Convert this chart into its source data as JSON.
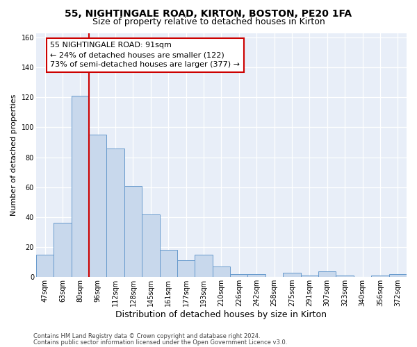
{
  "title1": "55, NIGHTINGALE ROAD, KIRTON, BOSTON, PE20 1FA",
  "title2": "Size of property relative to detached houses in Kirton",
  "xlabel": "Distribution of detached houses by size in Kirton",
  "ylabel": "Number of detached properties",
  "footer1": "Contains HM Land Registry data © Crown copyright and database right 2024.",
  "footer2": "Contains public sector information licensed under the Open Government Licence v3.0.",
  "categories": [
    "47sqm",
    "63sqm",
    "80sqm",
    "96sqm",
    "112sqm",
    "128sqm",
    "145sqm",
    "161sqm",
    "177sqm",
    "193sqm",
    "210sqm",
    "226sqm",
    "242sqm",
    "258sqm",
    "275sqm",
    "291sqm",
    "307sqm",
    "323sqm",
    "340sqm",
    "356sqm",
    "372sqm"
  ],
  "values": [
    15,
    36,
    121,
    95,
    86,
    61,
    42,
    18,
    11,
    15,
    7,
    2,
    2,
    0,
    3,
    1,
    4,
    1,
    0,
    1,
    2
  ],
  "bar_color": "#c8d8ec",
  "bar_edgecolor": "#6699cc",
  "vline_color": "#cc0000",
  "annotation_line1": "55 NIGHTINGALE ROAD: 91sqm",
  "annotation_line2": "← 24% of detached houses are smaller (122)",
  "annotation_line3": "73% of semi-detached houses are larger (377) →",
  "annotation_box_facecolor": "#ffffff",
  "annotation_box_edgecolor": "#cc0000",
  "ylim": [
    0,
    163
  ],
  "yticks": [
    0,
    20,
    40,
    60,
    80,
    100,
    120,
    140,
    160
  ],
  "fig_facecolor": "#ffffff",
  "ax_facecolor": "#e8eef8",
  "grid_color": "#ffffff",
  "title1_fontsize": 10,
  "title2_fontsize": 9,
  "xlabel_fontsize": 9,
  "ylabel_fontsize": 8,
  "tick_fontsize": 7,
  "annotation_fontsize": 8,
  "footer_fontsize": 6
}
